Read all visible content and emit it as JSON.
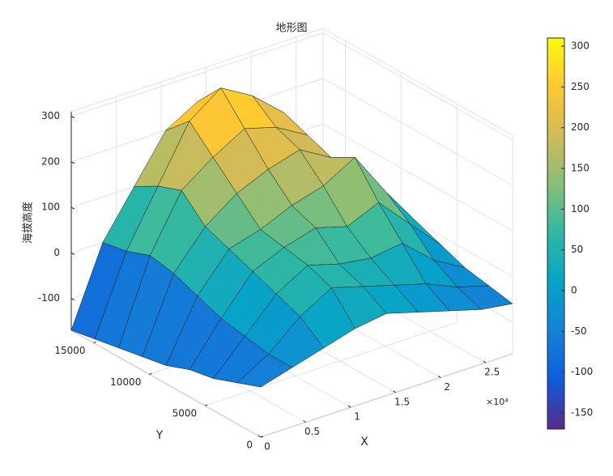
{
  "chart_data": {
    "type": "surface",
    "title": "地形图",
    "x_label": "X",
    "y_label": "Y",
    "z_label": "海拔高度",
    "x_exponent_label": "×10⁴",
    "colormap": "parula",
    "grid": true,
    "x": [
      0,
      3500,
      7000,
      10500,
      14000,
      17500,
      21000,
      24500,
      28000
    ],
    "y": [
      0,
      2125,
      4250,
      6375,
      8500,
      10625,
      12750,
      14875,
      17000
    ],
    "z": [
      [
        -60,
        -40,
        -20,
        0,
        10,
        -10,
        -30,
        -50,
        -60
      ],
      [
        -80,
        -40,
        20,
        60,
        40,
        20,
        0,
        -30,
        -50
      ],
      [
        -100,
        -30,
        40,
        80,
        60,
        50,
        60,
        0,
        -40
      ],
      [
        -110,
        -20,
        60,
        90,
        110,
        90,
        120,
        50,
        -20
      ],
      [
        -130,
        0,
        80,
        100,
        130,
        150,
        190,
        90,
        0
      ],
      [
        -140,
        20,
        100,
        150,
        180,
        200,
        160,
        80,
        10
      ],
      [
        -150,
        30,
        150,
        200,
        240,
        220,
        180,
        70,
        10
      ],
      [
        -160,
        10,
        130,
        250,
        300,
        260,
        200,
        90,
        20
      ],
      [
        -170,
        0,
        100,
        200,
        240,
        220,
        160,
        80,
        20
      ]
    ],
    "xlim": [
      0,
      28000
    ],
    "ylim": [
      0,
      17000
    ],
    "zlim": [
      -170,
      310
    ],
    "xticks": [
      0,
      {
        "value": 5000,
        "label": "0.5"
      },
      {
        "value": 10000,
        "label": "1"
      },
      {
        "value": 15000,
        "label": "1.5"
      },
      {
        "value": 20000,
        "label": "2"
      },
      {
        "value": 25000,
        "label": "2.5"
      }
    ],
    "yticks": [
      0,
      5000,
      10000,
      15000
    ],
    "zticks": [
      -100,
      0,
      100,
      200,
      300
    ],
    "clim": [
      -170,
      310
    ],
    "cticks": [
      -150,
      -100,
      -50,
      0,
      50,
      100,
      150,
      200,
      250,
      300
    ]
  }
}
